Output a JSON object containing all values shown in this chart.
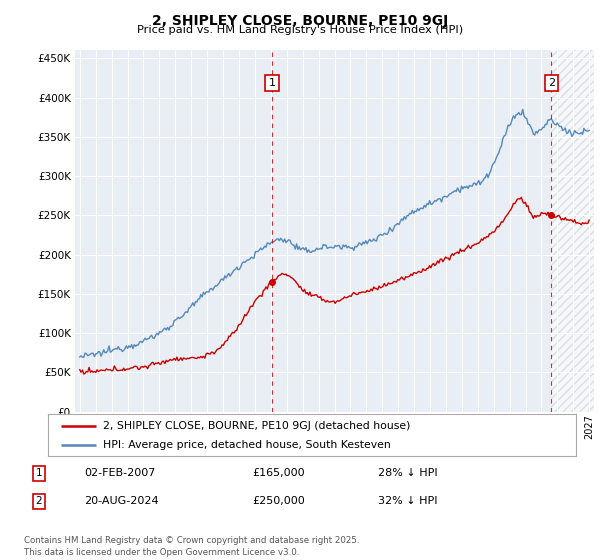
{
  "title": "2, SHIPLEY CLOSE, BOURNE, PE10 9GJ",
  "subtitle": "Price paid vs. HM Land Registry's House Price Index (HPI)",
  "ylim": [
    0,
    460000
  ],
  "yticks": [
    0,
    50000,
    100000,
    150000,
    200000,
    250000,
    300000,
    350000,
    400000,
    450000
  ],
  "xlim_start": 1994.7,
  "xlim_end": 2027.3,
  "sale1_date": 2007.085,
  "sale1_price": 165000,
  "sale1_label": "1",
  "sale2_date": 2024.63,
  "sale2_price": 250000,
  "sale2_label": "2",
  "red_line_color": "#cc0000",
  "blue_line_color": "#5588bb",
  "chart_bg_color": "#e8eef4",
  "annotation_box_color": "#cc0000",
  "grid_color": "#ffffff",
  "background_color": "#ffffff",
  "legend_red_label": "2, SHIPLEY CLOSE, BOURNE, PE10 9GJ (detached house)",
  "legend_blue_label": "HPI: Average price, detached house, South Kesteven",
  "table_row1": [
    "1",
    "02-FEB-2007",
    "£165,000",
    "28% ↓ HPI"
  ],
  "table_row2": [
    "2",
    "20-AUG-2024",
    "£250,000",
    "32% ↓ HPI"
  ],
  "footnote": "Contains HM Land Registry data © Crown copyright and database right 2025.\nThis data is licensed under the Open Government Licence v3.0.",
  "hpi_waypoints_x": [
    1995,
    1996,
    1997,
    1998,
    1999,
    2000,
    2001,
    2002,
    2003,
    2004,
    2005,
    2006,
    2007,
    2008,
    2009,
    2010,
    2011,
    2012,
    2013,
    2014,
    2015,
    2016,
    2017,
    2018,
    2019,
    2020,
    2021,
    2022,
    2022.5,
    2023,
    2023.5,
    2024,
    2024.5,
    2025,
    2026,
    2027
  ],
  "hpi_waypoints_y": [
    70000,
    73000,
    78000,
    83000,
    90000,
    100000,
    115000,
    133000,
    152000,
    168000,
    185000,
    200000,
    215000,
    218000,
    205000,
    208000,
    210000,
    210000,
    215000,
    225000,
    240000,
    255000,
    265000,
    275000,
    285000,
    290000,
    315000,
    365000,
    380000,
    375000,
    355000,
    360000,
    370000,
    365000,
    355000,
    360000
  ],
  "pp_waypoints_x": [
    1995,
    1996,
    1997,
    1998,
    1999,
    2000,
    2001,
    2002,
    2003,
    2004,
    2005,
    2006,
    2007.085,
    2008,
    2009,
    2010,
    2011,
    2012,
    2013,
    2014,
    2015,
    2016,
    2017,
    2018,
    2019,
    2020,
    2021,
    2022,
    2022.5,
    2023,
    2023.5,
    2024,
    2024.63,
    2025,
    2026,
    2027
  ],
  "pp_waypoints_y": [
    50000,
    51000,
    53000,
    55000,
    57000,
    62000,
    67000,
    68000,
    72000,
    85000,
    110000,
    140000,
    165000,
    175000,
    155000,
    145000,
    140000,
    148000,
    153000,
    160000,
    167000,
    175000,
    185000,
    195000,
    205000,
    215000,
    230000,
    255000,
    270000,
    265000,
    248000,
    252000,
    250000,
    248000,
    242000,
    240000
  ]
}
